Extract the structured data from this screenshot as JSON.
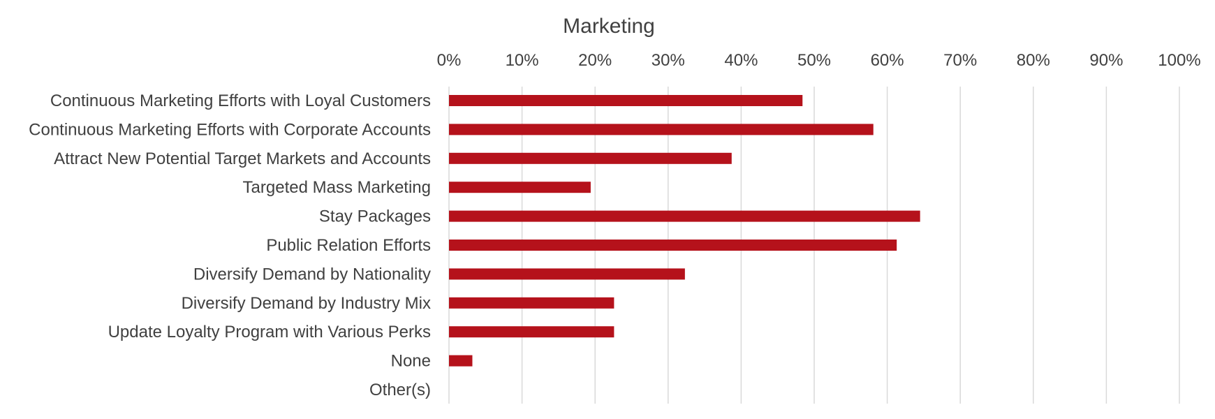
{
  "chart_data": {
    "type": "bar",
    "orientation": "horizontal",
    "title": "Marketing",
    "xlim": [
      0,
      100
    ],
    "x_ticks": [
      "0%",
      "10%",
      "20%",
      "30%",
      "40%",
      "50%",
      "60%",
      "70%",
      "80%",
      "90%",
      "100%"
    ],
    "x_axis_position": "top",
    "grid": true,
    "legend": "none",
    "categories": [
      "Continuous Marketing Efforts with Loyal Customers",
      "Continuous Marketing Efforts with Corporate Accounts",
      "Attract New Potential Target Markets and Accounts",
      "Targeted Mass Marketing",
      "Stay Packages",
      "Public Relation Efforts",
      "Diversify Demand by Nationality",
      "Diversify Demand by Industry Mix",
      "Update Loyalty Program with Various Perks",
      "None",
      "Other(s)"
    ],
    "values": [
      48.4,
      58.1,
      38.7,
      19.4,
      64.5,
      61.3,
      32.3,
      22.6,
      22.6,
      3.2,
      0
    ],
    "bar_color": "#b5121b",
    "gridline_color": "#d9d9d9",
    "text_color": "#404040"
  }
}
